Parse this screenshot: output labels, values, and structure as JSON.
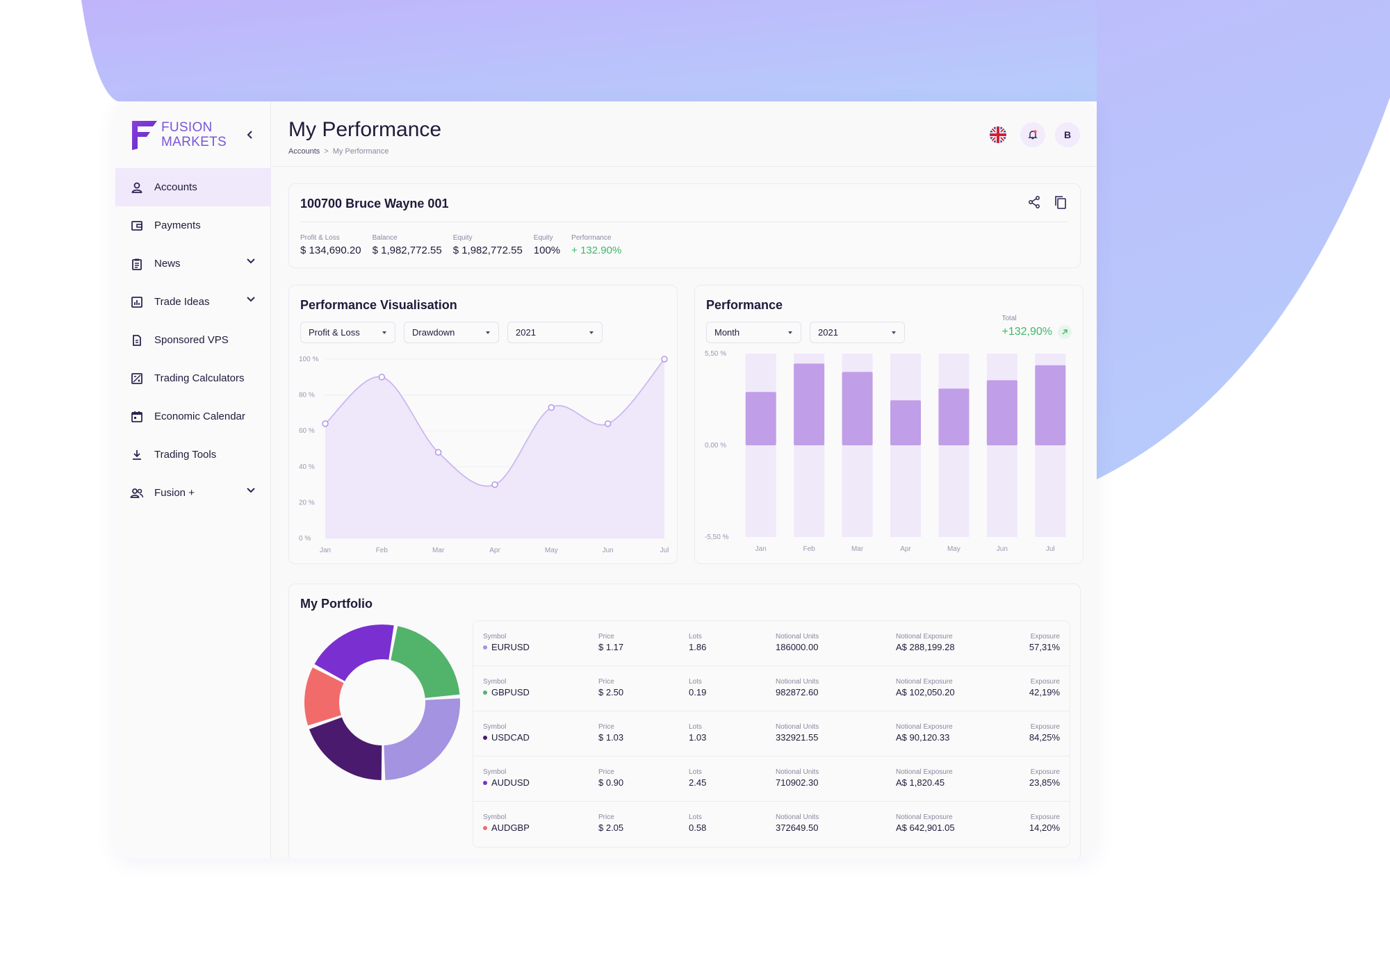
{
  "brand": {
    "line1": "FUSION",
    "line2": "MARKETS",
    "accent": "#7a54d8"
  },
  "sidebar": {
    "items": [
      {
        "label": "Accounts",
        "icon": "user-icon",
        "active": true
      },
      {
        "label": "Payments",
        "icon": "wallet-icon"
      },
      {
        "label": "News",
        "icon": "clipboard-icon",
        "expandable": true
      },
      {
        "label": "Trade Ideas",
        "icon": "bar-chart-icon",
        "expandable": true
      },
      {
        "label": "Sponsored VPS",
        "icon": "document-icon"
      },
      {
        "label": "Trading Calculators",
        "icon": "calculator-icon"
      },
      {
        "label": "Economic Calendar",
        "icon": "calendar-icon"
      },
      {
        "label": "Trading Tools",
        "icon": "download-icon"
      },
      {
        "label": "Fusion +",
        "icon": "users-icon",
        "expandable": true
      }
    ]
  },
  "header": {
    "title": "My Performance",
    "breadcrumb": {
      "parent": "Accounts",
      "separator": ">",
      "current": "My Performance"
    },
    "avatar_initial": "B",
    "icons": [
      "uk-flag-icon",
      "bell-icon"
    ]
  },
  "account": {
    "title": "100700 Bruce Wayne 001",
    "metrics": [
      {
        "label": "Profit & Loss",
        "value": "$ 134,690.20"
      },
      {
        "label": "Balance",
        "value": "$ 1,982,772.55"
      },
      {
        "label": "Equity",
        "value": "$ 1,982,772.55"
      },
      {
        "label": "Equity",
        "value": "100%"
      },
      {
        "label": "Performance",
        "value": "+ 132.90%",
        "positive": true
      }
    ]
  },
  "perf_vis": {
    "title": "Performance Visualisation",
    "filters": [
      "Profit & Loss",
      "Drawdown",
      "2021"
    ]
  },
  "perf": {
    "title": "Performance",
    "filters": [
      "Month",
      "2021"
    ],
    "total_label": "Total",
    "total_value": "+132,90%"
  },
  "portfolio": {
    "title": "My Portfolio",
    "columns": [
      "Symbol",
      "Price",
      "Lots",
      "Notional Units",
      "Notional Exposure",
      "Exposure"
    ],
    "rows": [
      {
        "symbol": "EURUSD",
        "color": "#a393e0",
        "price": "$ 1.17",
        "lots": "1.86",
        "units": "186000.00",
        "notional": "A$ 288,199.28",
        "exposure": "57,31%"
      },
      {
        "symbol": "GBPUSD",
        "color": "#52b36a",
        "price": "$ 2.50",
        "lots": "0.19",
        "units": "982872.60",
        "notional": "A$ 102,050.20",
        "exposure": "42,19%"
      },
      {
        "symbol": "USDCAD",
        "color": "#4a1a6e",
        "price": "$ 1.03",
        "lots": "1.03",
        "units": "332921.55",
        "notional": "A$ 90,120.33",
        "exposure": "84,25%"
      },
      {
        "symbol": "AUDUSD",
        "color": "#7a2fd0",
        "price": "$ 0.90",
        "lots": "2.45",
        "units": "710902.30",
        "notional": "A$ 1,820.45",
        "exposure": "23,85%"
      },
      {
        "symbol": "AUDGBP",
        "color": "#f26b6b",
        "price": "$ 2.05",
        "lots": "0.58",
        "units": "372649.50",
        "notional": "A$ 642,901.05",
        "exposure": "14,20%"
      }
    ]
  },
  "chart_data": [
    {
      "type": "area",
      "title": "Performance Visualisation",
      "categories": [
        "Jan",
        "Feb",
        "Mar",
        "Apr",
        "May",
        "Jun",
        "Jul"
      ],
      "values": [
        64,
        90,
        48,
        30,
        73,
        64,
        100
      ],
      "ylim": [
        0,
        100
      ],
      "yticks": [
        "100 %",
        "80 %",
        "60 %",
        "40 %",
        "20 %",
        "0 %"
      ],
      "color": "#c7b3ef"
    },
    {
      "type": "bar",
      "title": "Performance",
      "categories": [
        "Jan",
        "Feb",
        "Mar",
        "Apr",
        "May",
        "Jun",
        "Jul"
      ],
      "values": [
        3.2,
        4.9,
        4.4,
        2.7,
        3.4,
        3.9,
        4.8
      ],
      "ylim": [
        -5.5,
        5.5
      ],
      "yticks": [
        "5,50 %",
        "0,00 %",
        "-5,50 %"
      ],
      "color": "#c19ee8",
      "track_color": "#f0e9fa"
    },
    {
      "type": "pie",
      "title": "My Portfolio",
      "labels": [
        "EURUSD",
        "GBPUSD",
        "USDCAD",
        "AUDUSD",
        "AUDGBP"
      ],
      "values": [
        26,
        21,
        20,
        20,
        13
      ],
      "colors": [
        "#a393e0",
        "#52b36a",
        "#4a1a6e",
        "#7a2fd0",
        "#f26b6b"
      ]
    }
  ]
}
